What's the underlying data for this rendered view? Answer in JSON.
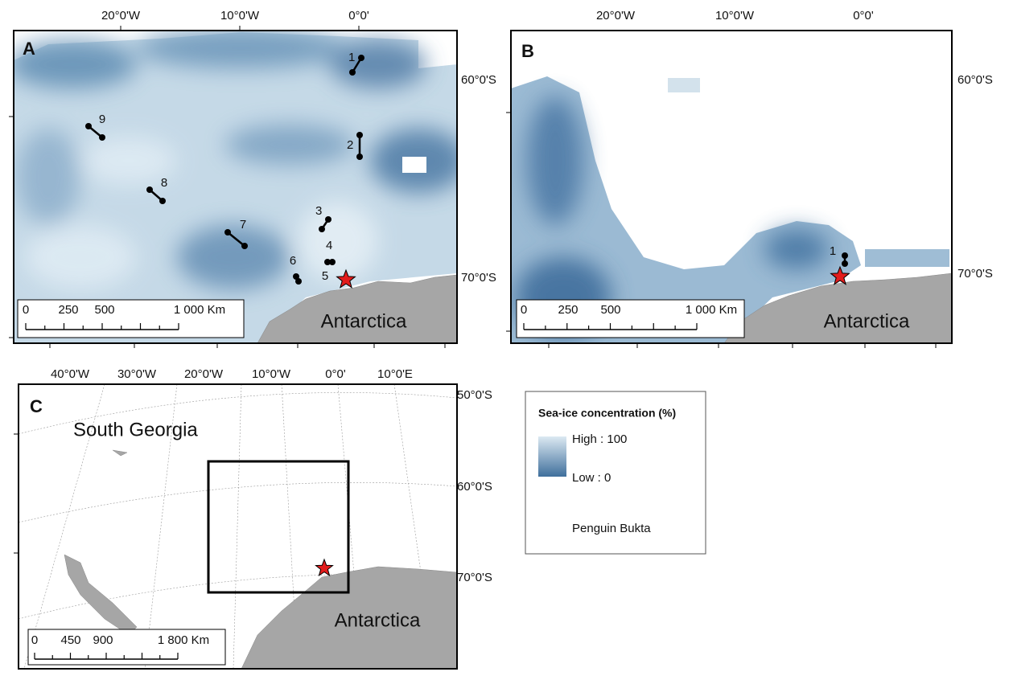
{
  "panel_a": {
    "label": "A",
    "lon_labels": [
      "20°0'W",
      "10°0'W",
      "0°0'"
    ],
    "lat_labels": [
      "60°0'S",
      "70°0'S"
    ],
    "tracks": [
      "1",
      "2",
      "3",
      "4",
      "5",
      "6",
      "7",
      "8",
      "9"
    ],
    "scale": [
      "0",
      "250",
      "500",
      "1 000 Km"
    ],
    "land": "Antarctica"
  },
  "panel_b": {
    "label": "B",
    "lon_labels": [
      "20°0'W",
      "10°0'W",
      "0°0'"
    ],
    "lat_labels": [
      "60°0'S",
      "70°0'S"
    ],
    "tracks": [
      "1"
    ],
    "scale": [
      "0",
      "250",
      "500",
      "1 000 Km"
    ],
    "land": "Antarctica"
  },
  "panel_c": {
    "label": "C",
    "lon_labels": [
      "40°0'W",
      "30°0'W",
      "20°0'W",
      "10°0'W",
      "0°0'",
      "10°0'E"
    ],
    "lat_labels": [
      "50°0'S",
      "60°0'S",
      "70°0'S"
    ],
    "region": "South Georgia",
    "land": "Antarctica",
    "scale": [
      "0",
      "450",
      "900",
      "1 800 Km"
    ]
  },
  "legend": {
    "title": "Sea-ice concentration (%)",
    "high": "High : 100",
    "low": "Low : 0",
    "marker": "Penguin Bukta"
  }
}
